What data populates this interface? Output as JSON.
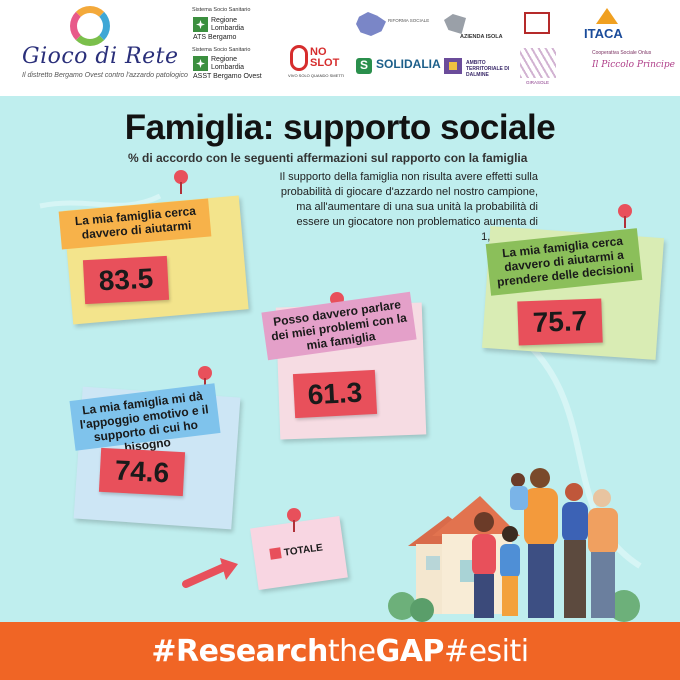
{
  "header": {
    "logo_title": "Gioco di Rete",
    "logo_subtitle": "Il distretto Bergamo Ovest contro l'azzardo patologico",
    "sistema_1": "Sistema Socio Sanitario",
    "regione_1": "Regione",
    "lombardia_1": "Lombardia",
    "ats": "ATS Bergamo",
    "sistema_2": "Sistema Socio Sanitario",
    "regione_2": "Regione",
    "lombardia_2": "Lombardia",
    "asst": "ASST Bergamo Ovest",
    "noslot": "NO SLOT",
    "noslot_sub": "VIVO SOLO QUANDO SMETTI",
    "solidalia": "SOLIDALIA",
    "rete_sociale": "RIFORMA SOCIALE",
    "azienda_isola": "AZIENDA ISOLA",
    "ambito": "AMBITO TERRITORIALE DI DALMINE",
    "itaca": "ITACA",
    "girasole": "GIRASOLE",
    "cooperativa": "Cooperativa Sociale Onlus",
    "piccolo_principe": "Il Piccolo Principe"
  },
  "main": {
    "title": "Famiglia: supporto sociale",
    "subtitle": "%  di accordo con le seguenti affermazioni sul rapporto con la famiglia",
    "description": "Il supporto della famiglia non risulta avere effetti sulla probabilità di giocare d'azzardo nel nostro campione, ma all'aumentare di una sua unità la probabilità di essere un giocatore non problematico aumenta di 1,287 volte."
  },
  "notes": [
    {
      "label": "La mia famiglia cerca davvero di aiutarmi",
      "value": "83.5",
      "note_color": "#f3e48c",
      "label_bg": "#f7b24a"
    },
    {
      "label": "La mia famiglia cerca davvero di aiutarmi a prendere delle decisioni",
      "value": "75.7",
      "note_color": "#d9ecb4",
      "label_bg": "#8bbf5a"
    },
    {
      "label": "Posso davvero parlare dei miei problemi con la mia famiglia",
      "value": "61.3",
      "note_color": "#f6dce3",
      "label_bg": "#e4a0c9"
    },
    {
      "label": "La mia famiglia mi dà l'appoggio emotivo e il supporto di cui ho bisogno",
      "value": "74.6",
      "note_color": "#cde6f5",
      "label_bg": "#7fc3ec"
    }
  ],
  "legend": {
    "label": "TOTALE",
    "color": "#e8505b"
  },
  "footer": {
    "part1": "#Research",
    "part2": "the",
    "part3": "GAP",
    "part4": "#esiti"
  },
  "colors": {
    "background": "#bfeeee",
    "footer": "#f06525",
    "value_box": "#e8505b",
    "pin": "#e8505b"
  }
}
